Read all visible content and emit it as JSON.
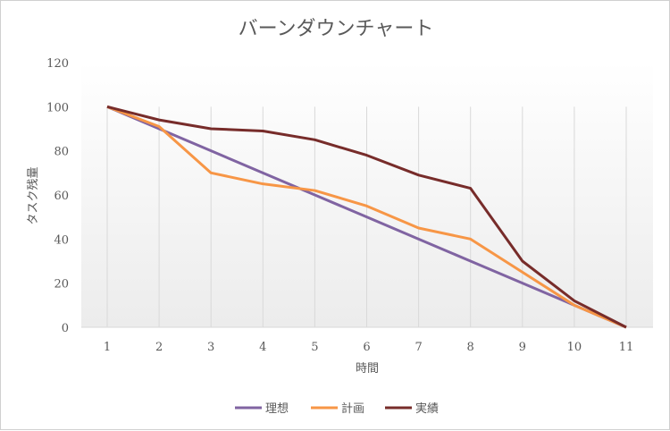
{
  "chart_data": {
    "type": "line",
    "title": "バーンダウンチャート",
    "xlabel": "時間",
    "ylabel": "タスク残量",
    "x": [
      1,
      2,
      3,
      4,
      5,
      6,
      7,
      8,
      9,
      10,
      11
    ],
    "ylim": [
      0,
      120
    ],
    "yticks": [
      0,
      20,
      40,
      60,
      80,
      100,
      120
    ],
    "grid": "vertical",
    "legend": "bottom",
    "series": [
      {
        "name": "理想",
        "color": "#8064a2",
        "values": [
          100,
          90,
          80,
          70,
          60,
          50,
          40,
          30,
          20,
          10,
          0
        ]
      },
      {
        "name": "計画",
        "color": "#f79646",
        "values": [
          100,
          91,
          70,
          65,
          62,
          55,
          45,
          40,
          25,
          10,
          0
        ]
      },
      {
        "name": "実績",
        "color": "#772c2a",
        "values": [
          100,
          94,
          90,
          89,
          85,
          78,
          69,
          63,
          30,
          12,
          0
        ]
      }
    ]
  }
}
